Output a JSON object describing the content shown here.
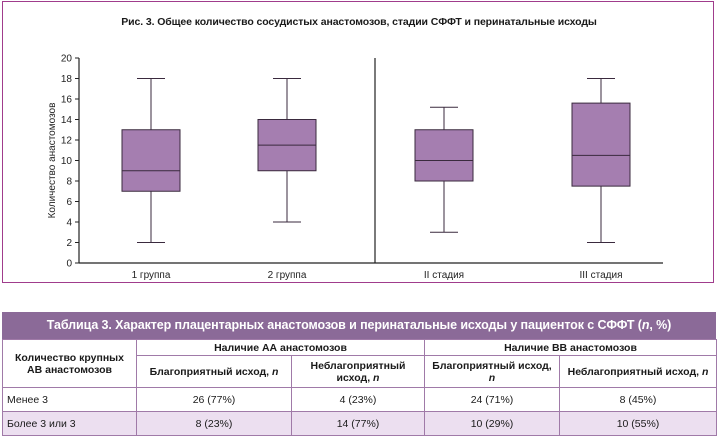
{
  "figure": {
    "title": "Рис. 3. Общее количество сосудистых анастомозов, стадии СФФТ и перинатальные исходы"
  },
  "chart_data": {
    "type": "box",
    "ylabel": "Количество анастомозов",
    "ylim": [
      0,
      20
    ],
    "yticks": [
      0,
      2,
      4,
      6,
      8,
      10,
      12,
      14,
      16,
      18,
      20
    ],
    "panels": [
      {
        "name": "groups",
        "categories": [
          "1 группа",
          "2 группа"
        ]
      },
      {
        "name": "stages",
        "categories": [
          "II стадия",
          "III стадия"
        ]
      }
    ],
    "boxes": [
      {
        "label": "1 группа",
        "min": 2,
        "q1": 7,
        "median": 9,
        "q3": 13,
        "max": 18
      },
      {
        "label": "2 группа",
        "min": 4,
        "q1": 9,
        "median": 11.5,
        "q3": 14,
        "max": 18
      },
      {
        "label": "II стадия",
        "min": 3,
        "q1": 8,
        "median": 10,
        "q3": 13,
        "max": 15.2
      },
      {
        "label": "III стадия",
        "min": 2,
        "q1": 7.5,
        "median": 10.5,
        "q3": 15.6,
        "max": 18
      }
    ],
    "box_color": "#a57eb0",
    "edge_color": "#3a2a3e"
  },
  "table": {
    "title_parts": [
      "Таблица 3. Характер плацентарных анастомозов и перинатальные исходы у пациенток с СФФТ (",
      "n",
      ", %)"
    ],
    "row_header": "Количество крупных АВ анастомозов",
    "group_aa": "Наличие АА анастомозов",
    "group_bb": "Наличие ВВ анастомозов",
    "col_favorable": "Благоприятный исход, ",
    "col_unfavorable": "Неблагоприятный исход, ",
    "n_symbol": "n",
    "rows": [
      {
        "label": "Менее 3",
        "aa_fav": "26 (77%)",
        "aa_unfav": "4 (23%)",
        "bb_fav": "24 (71%)",
        "bb_unfav": "8 (45%)"
      },
      {
        "label": "Более 3 или 3",
        "aa_fav": "8 (23%)",
        "aa_unfav": "14 (77%)",
        "bb_fav": "10 (29%)",
        "bb_unfav": "10 (55%)"
      }
    ],
    "colors": {
      "header_bg": "#8b6a98",
      "stripe": "#ecdff0",
      "border": "#a07aa8"
    }
  },
  "frame_color": "#a03c8c"
}
